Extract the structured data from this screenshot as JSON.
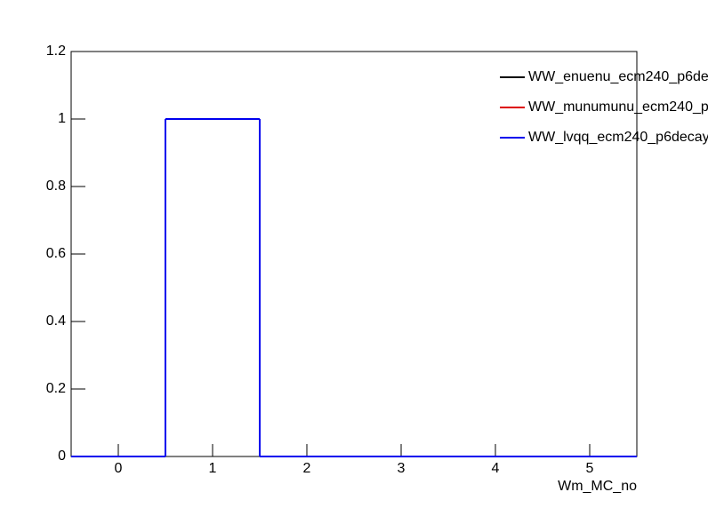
{
  "chart_data": {
    "type": "histogram",
    "bins": [
      -0.5,
      0.5,
      1.5,
      2.5,
      3.5,
      4.5,
      5.5
    ],
    "series": [
      {
        "name": "WW_enuenu_ecm240_p6de",
        "color": "#000000",
        "values": [
          0,
          1,
          0,
          0,
          0,
          0
        ]
      },
      {
        "name": "WW_munumunu_ecm240_p",
        "color": "#dd0000",
        "values": [
          0,
          1,
          0,
          0,
          0,
          0
        ]
      },
      {
        "name": "WW_lvqq_ecm240_p6decay",
        "color": "#0000ee",
        "values": [
          0,
          1,
          0,
          0,
          0,
          0
        ]
      }
    ],
    "x_label": "Wm_MC_no",
    "xlim": [
      -0.5,
      5.5
    ],
    "xticks": [
      0,
      1,
      2,
      3,
      4,
      5
    ],
    "ylim": [
      0,
      1.2
    ],
    "yticks": [
      0,
      0.2,
      0.4,
      0.6,
      0.8,
      1,
      1.2
    ],
    "legend": "top-right"
  }
}
